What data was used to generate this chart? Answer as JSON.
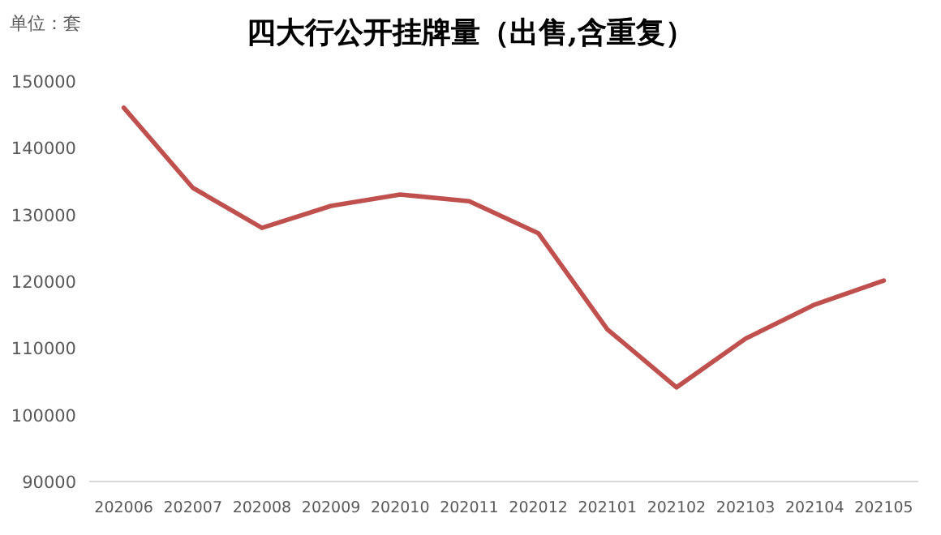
{
  "chart_data": {
    "type": "line",
    "title": "四大行公开挂牌量（出售,含重复）",
    "annotations": [
      "单位：套"
    ],
    "categories": [
      "202006",
      "202007",
      "202008",
      "202009",
      "202010",
      "202011",
      "202012",
      "202101",
      "202102",
      "202103",
      "202104",
      "202105"
    ],
    "series": [
      {
        "color": "#c0504d",
        "values": [
          146000,
          134000,
          128000,
          131300,
          133000,
          132000,
          127200,
          112800,
          104100,
          111400,
          116500,
          120100
        ]
      }
    ],
    "ylim": [
      90000,
      150000
    ],
    "yticks": [
      90000,
      100000,
      110000,
      120000,
      130000,
      140000,
      150000
    ],
    "grid": false,
    "marker": "none",
    "line_style": "solid"
  }
}
